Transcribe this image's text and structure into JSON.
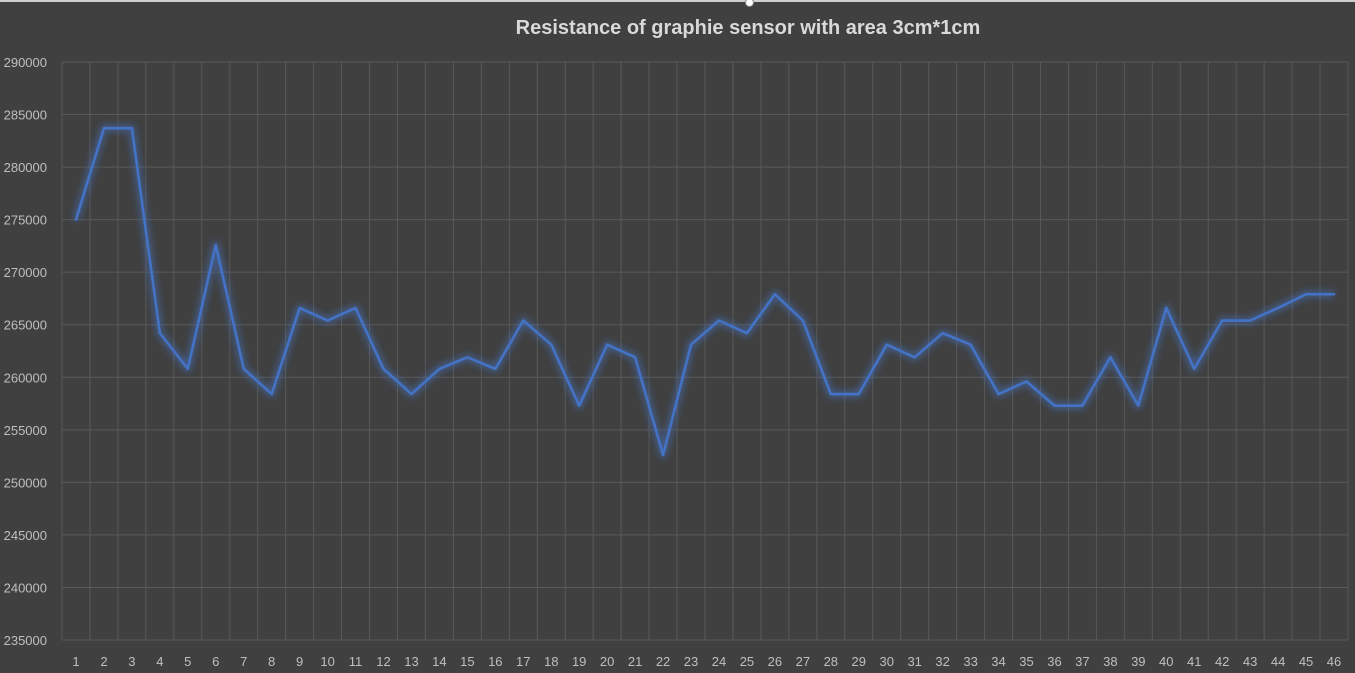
{
  "chart_data": {
    "type": "line",
    "title": "Resistance of graphie sensor with area 3cm*1cm",
    "xlabel": "",
    "ylabel": "",
    "x": [
      1,
      2,
      3,
      4,
      5,
      6,
      7,
      8,
      9,
      10,
      11,
      12,
      13,
      14,
      15,
      16,
      17,
      18,
      19,
      20,
      21,
      22,
      23,
      24,
      25,
      26,
      27,
      28,
      29,
      30,
      31,
      32,
      33,
      34,
      35,
      36,
      37,
      38,
      39,
      40,
      41,
      42,
      43,
      44,
      45,
      46
    ],
    "series": [
      {
        "values": [
          275000,
          283700,
          283700,
          264200,
          260800,
          272600,
          260800,
          258400,
          266600,
          265400,
          266600,
          260800,
          258400,
          260800,
          261900,
          260800,
          265400,
          263100,
          257300,
          263100,
          261900,
          252600,
          263100,
          265400,
          264200,
          267900,
          265400,
          258400,
          258400,
          263100,
          261900,
          264200,
          263100,
          258400,
          259600,
          257300,
          257300,
          261900,
          257300,
          266600,
          260800,
          265400,
          265400,
          266600,
          267900,
          267900
        ]
      }
    ],
    "ylim": [
      235000,
      290000
    ],
    "yticks": [
      290000,
      285000,
      280000,
      275000,
      270000,
      265000,
      260000,
      255000,
      250000,
      245000,
      240000,
      235000
    ],
    "grid": true,
    "legend": "none",
    "colors": {
      "background": "#404040",
      "line": "#4472c4",
      "glow": "#4472c4",
      "gridline": "#595959",
      "text": "#bfbfbf",
      "title": "#d9d9d9"
    }
  }
}
